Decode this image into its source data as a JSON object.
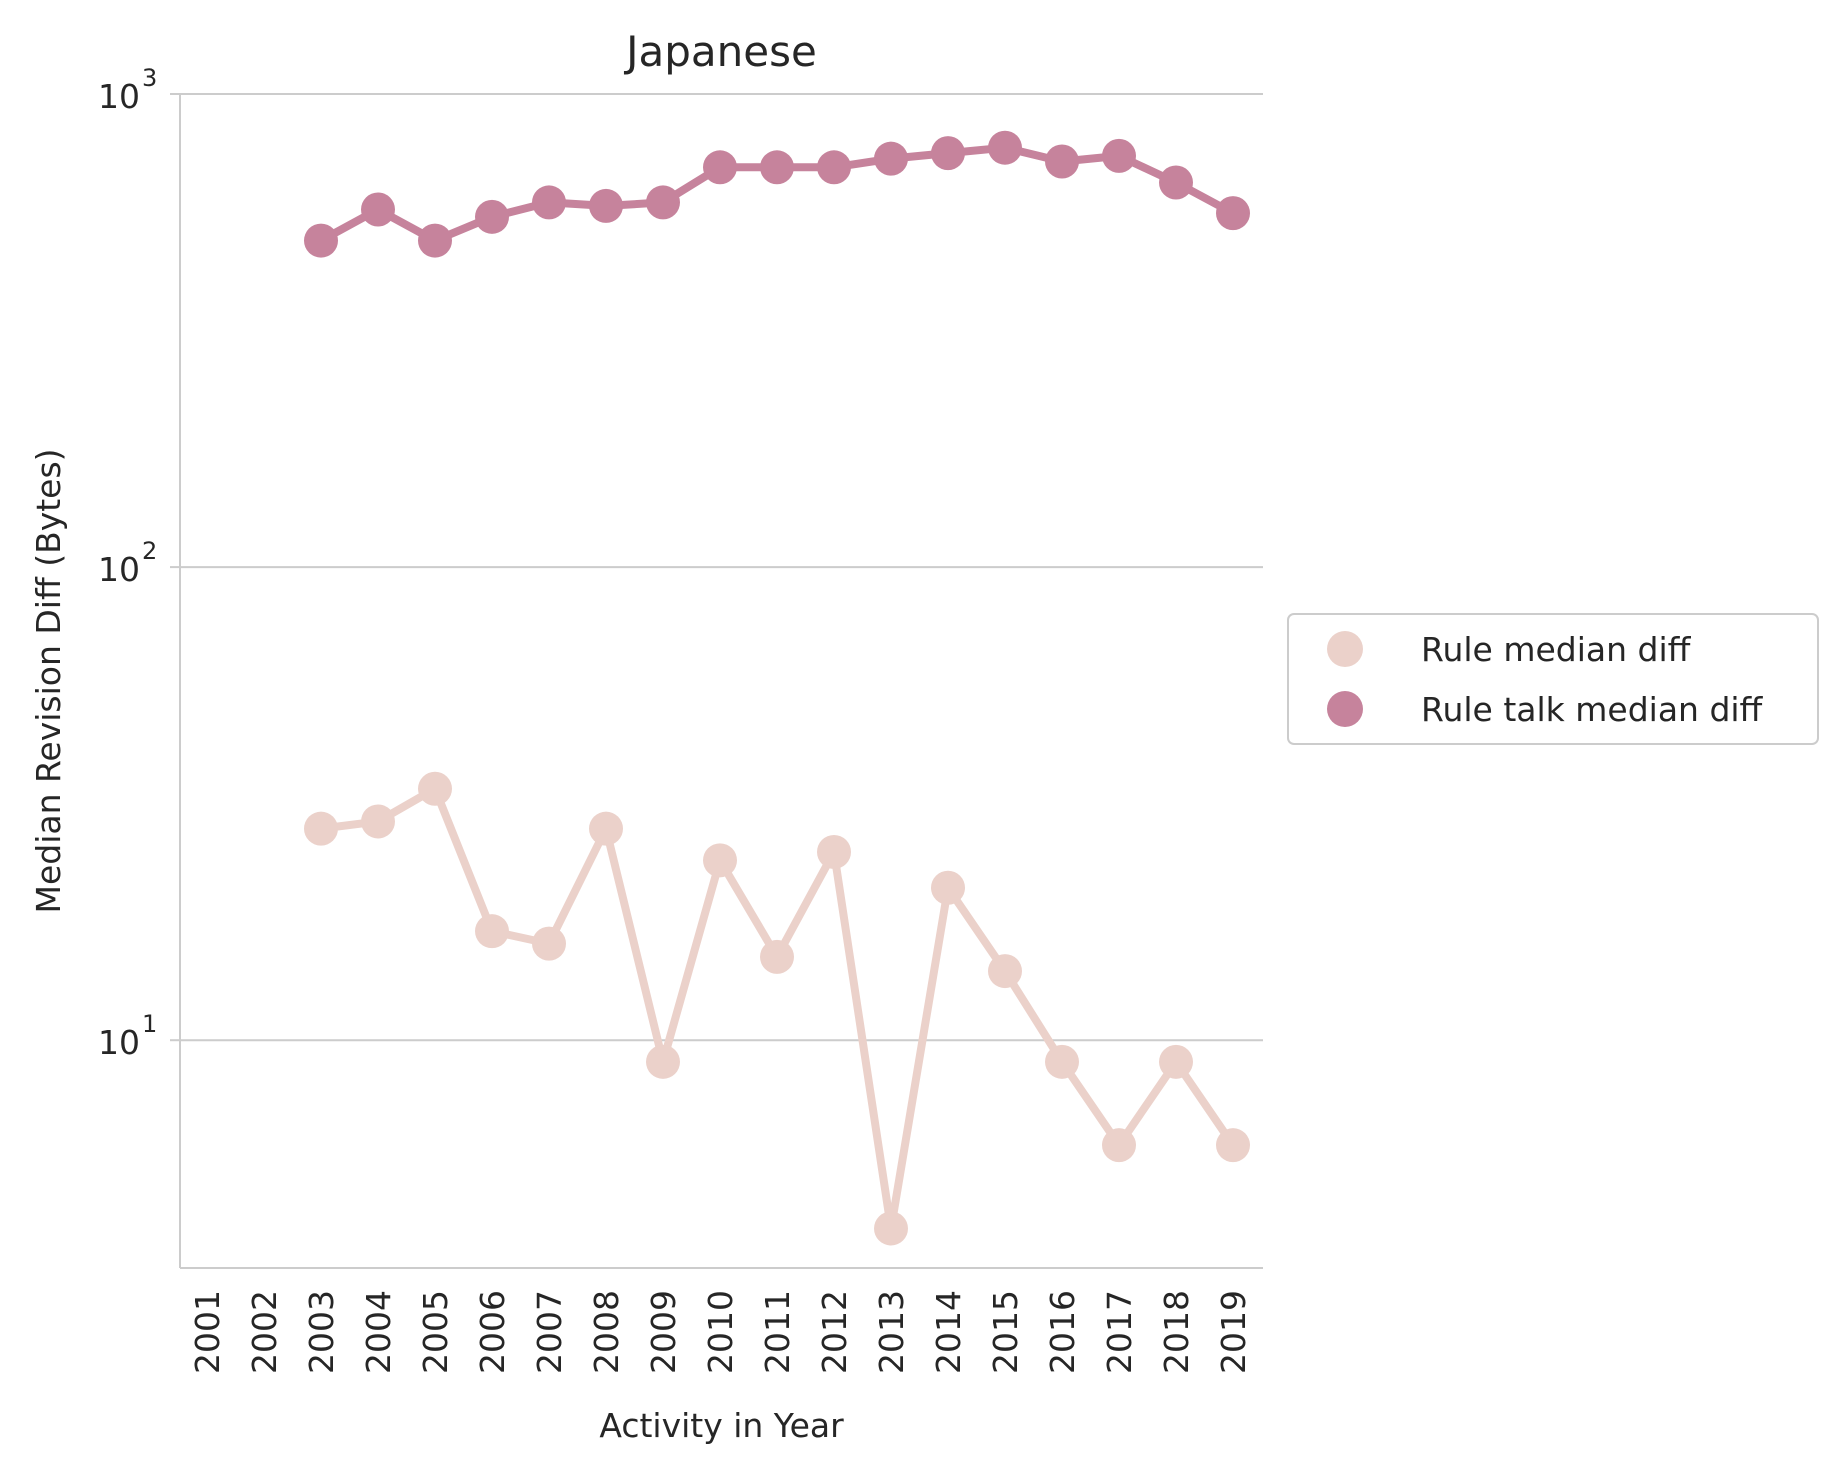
{
  "chart_data": {
    "type": "line",
    "title": "Japanese",
    "xlabel": "Activity in Year",
    "ylabel": "Median Revision Diff (Bytes)",
    "yscale": "log",
    "ylim": [
      3.3,
      1000
    ],
    "ytick_labels": [
      {
        "value": 10,
        "base": "10",
        "exp": "1"
      },
      {
        "value": 100,
        "base": "10",
        "exp": "2"
      },
      {
        "value": 1000,
        "base": "10",
        "exp": "3"
      }
    ],
    "categories": [
      "2001",
      "2002",
      "2003",
      "2004",
      "2005",
      "2006",
      "2007",
      "2008",
      "2009",
      "2010",
      "2011",
      "2012",
      "2013",
      "2014",
      "2015",
      "2016",
      "2017",
      "2018",
      "2019"
    ],
    "grid": "horizontal",
    "legend_position": "center-right, outside",
    "series": [
      {
        "name": "Rule median diff",
        "color": "#ebd1ca",
        "x": [
          "2003",
          "2004",
          "2005",
          "2006",
          "2007",
          "2008",
          "2009",
          "2010",
          "2011",
          "2012",
          "2013",
          "2014",
          "2015",
          "2016",
          "2017",
          "2018",
          "2019"
        ],
        "values": [
          28,
          29,
          34,
          17,
          16,
          28,
          9,
          24,
          15,
          25,
          4,
          21,
          14,
          9,
          6,
          9,
          6
        ]
      },
      {
        "name": "Rule talk median diff",
        "color": "#c6839c",
        "x": [
          "2003",
          "2004",
          "2005",
          "2006",
          "2007",
          "2008",
          "2009",
          "2010",
          "2011",
          "2012",
          "2013",
          "2014",
          "2015",
          "2016",
          "2017",
          "2018",
          "2019"
        ],
        "values": [
          490,
          570,
          490,
          550,
          590,
          580,
          590,
          700,
          700,
          700,
          730,
          750,
          770,
          720,
          740,
          650,
          560
        ]
      }
    ]
  }
}
